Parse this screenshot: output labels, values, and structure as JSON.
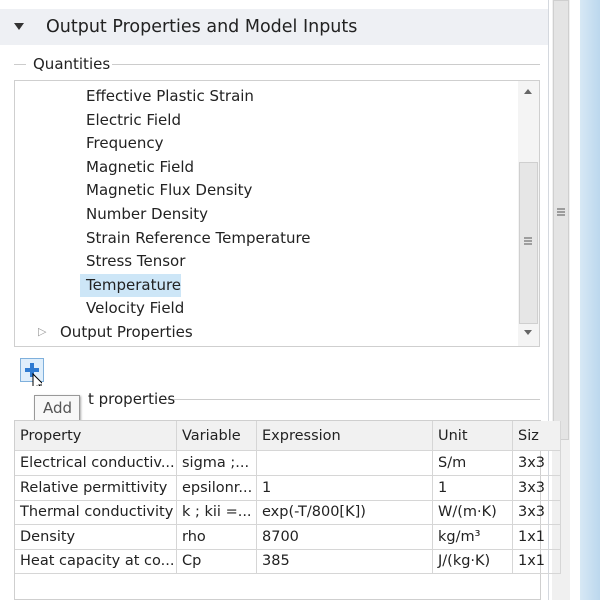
{
  "section": {
    "title": "Output Properties and Model Inputs"
  },
  "quantities": {
    "label": "Quantities",
    "items": [
      "Effective Plastic Strain",
      "Electric Field",
      "Frequency",
      "Magnetic Field",
      "Magnetic Flux Density",
      "Number Density",
      "Strain Reference Temperature",
      "Stress Tensor",
      "Temperature",
      "Velocity Field"
    ],
    "selected": "Temperature",
    "parent": "Output Properties"
  },
  "tooltip": "Add",
  "properties": {
    "label": "t properties",
    "columns": [
      "Property",
      "Variable",
      "Expression",
      "Unit",
      "Siz"
    ],
    "rows": [
      [
        "Electrical conductiv...",
        "sigma ;...",
        null,
        "S/m",
        "3x3"
      ],
      [
        "Relative permittivity",
        "epsilonr...",
        "1",
        "1",
        "3x3"
      ],
      [
        "Thermal conductivity",
        "k ; kii =...",
        "exp(-T/800[K])",
        "W/(m·K)",
        "3x3"
      ],
      [
        "Density",
        "rho",
        "8700",
        "kg/m³",
        "1x1"
      ],
      [
        "Heat capacity at co...",
        "Cp",
        "385",
        "J/(kg·K)",
        "1x1"
      ]
    ]
  }
}
